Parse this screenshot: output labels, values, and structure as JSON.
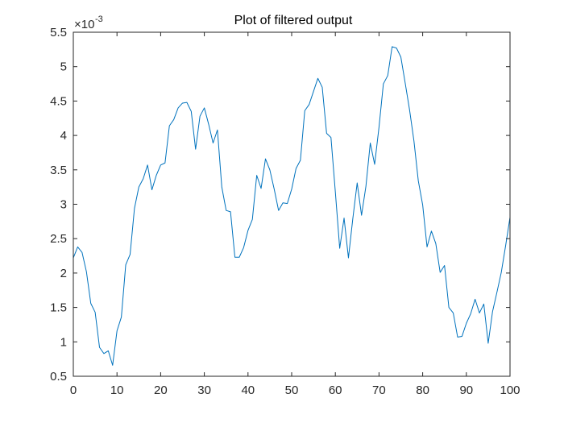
{
  "chart_data": {
    "type": "line",
    "title": "Plot of filtered output",
    "xlabel": "",
    "ylabel": "",
    "xlim": [
      0,
      100
    ],
    "ylim": [
      0.5,
      5.5
    ],
    "y_exponent_label": "×10",
    "y_exponent_power": "-3",
    "x_ticks": [
      0,
      10,
      20,
      30,
      40,
      50,
      60,
      70,
      80,
      90,
      100
    ],
    "x_tick_labels": [
      "0",
      "10",
      "20",
      "30",
      "40",
      "50",
      "60",
      "70",
      "80",
      "90",
      "100"
    ],
    "y_ticks": [
      0.5,
      1,
      1.5,
      2,
      2.5,
      3,
      3.5,
      4,
      4.5,
      5,
      5.5
    ],
    "y_tick_labels": [
      "0.5",
      "1",
      "1.5",
      "2",
      "2.5",
      "3",
      "3.5",
      "4",
      "4.5",
      "5",
      "5.5"
    ],
    "grid": false,
    "line_color": "#0072BD",
    "axis_color": "#262626",
    "series": [
      {
        "x": [
          0,
          1,
          2,
          3,
          4,
          5,
          6,
          7,
          8,
          9,
          10,
          11,
          12,
          13,
          14,
          15,
          16,
          17,
          18,
          19,
          20,
          21,
          22,
          23,
          24,
          25,
          26,
          27,
          28,
          29,
          30,
          31,
          32,
          33,
          34,
          35,
          36,
          37,
          38,
          39,
          40,
          41,
          42,
          43,
          44,
          45,
          46,
          47,
          48,
          49,
          50,
          51,
          52,
          53,
          54,
          55,
          56,
          57,
          58,
          59,
          60,
          61,
          62,
          63,
          64,
          65,
          66,
          67,
          68,
          69,
          70,
          71,
          72,
          73,
          74,
          75,
          76,
          77,
          78,
          79,
          80,
          81,
          82,
          83,
          84,
          85,
          86,
          87,
          88,
          89,
          90,
          91,
          92,
          93,
          94,
          95,
          96,
          97,
          98,
          99,
          100
        ],
        "values": [
          2.22,
          2.38,
          2.3,
          2.02,
          1.56,
          1.43,
          0.92,
          0.83,
          0.87,
          0.66,
          1.16,
          1.36,
          2.12,
          2.27,
          2.94,
          3.25,
          3.37,
          3.57,
          3.21,
          3.42,
          3.57,
          3.6,
          4.14,
          4.23,
          4.4,
          4.47,
          4.48,
          4.35,
          3.8,
          4.28,
          4.4,
          4.16,
          3.89,
          4.08,
          3.25,
          2.91,
          2.89,
          2.23,
          2.23,
          2.37,
          2.62,
          2.78,
          3.42,
          3.23,
          3.66,
          3.5,
          3.22,
          2.91,
          3.02,
          3.01,
          3.22,
          3.52,
          3.64,
          4.36,
          4.45,
          4.64,
          4.83,
          4.7,
          4.03,
          3.97,
          3.18,
          2.36,
          2.8,
          2.22,
          2.79,
          3.31,
          2.84,
          3.26,
          3.89,
          3.58,
          4.12,
          4.75,
          4.87,
          5.29,
          5.27,
          5.14,
          4.76,
          4.37,
          3.92,
          3.34,
          2.99,
          2.38,
          2.61,
          2.43,
          2.01,
          2.11,
          1.5,
          1.42,
          1.07,
          1.08,
          1.27,
          1.41,
          1.62,
          1.42,
          1.55,
          0.98,
          1.44,
          1.72,
          2.01,
          2.4,
          2.81
        ]
      }
    ]
  }
}
